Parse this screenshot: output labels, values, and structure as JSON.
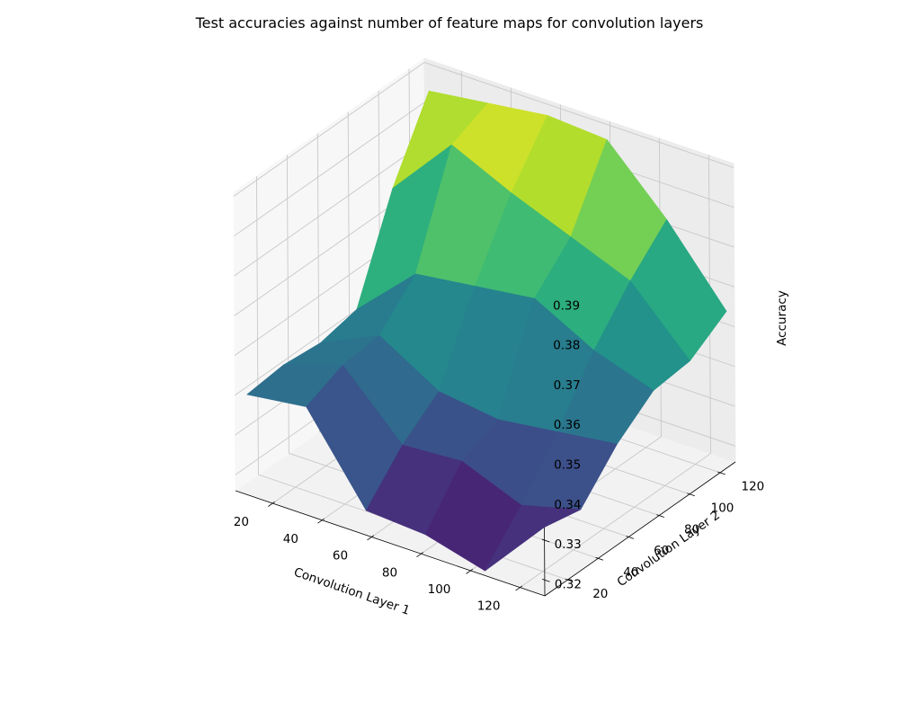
{
  "chart_data": {
    "type": "surface3d",
    "title": "Test accuracies against number of feature maps for convolution layers",
    "xlabel": "Convolution Layer 1",
    "ylabel": "Convolution Layer 2",
    "zlabel": "Accuracy",
    "xticks": [
      "20",
      "40",
      "60",
      "80",
      "100",
      "120"
    ],
    "yticks": [
      "20",
      "40",
      "60",
      "80",
      "100",
      "120"
    ],
    "zticks": [
      "0.32",
      "0.33",
      "0.34",
      "0.35",
      "0.36",
      "0.37",
      "0.38",
      "0.39"
    ],
    "xlim": [
      5,
      130
    ],
    "ylim": [
      5,
      130
    ],
    "zlim": [
      0.316,
      0.391
    ],
    "grid": true,
    "colormap": "viridis",
    "x": [
      8,
      32,
      56,
      80,
      104,
      128
    ],
    "y": [
      8,
      32,
      56,
      80,
      104,
      128
    ],
    "z": [
      [
        0.34,
        0.341,
        0.34,
        0.342,
        0.366,
        0.384
      ],
      [
        0.342,
        0.346,
        0.347,
        0.356,
        0.382,
        0.386
      ],
      [
        0.321,
        0.331,
        0.338,
        0.358,
        0.375,
        0.388
      ],
      [
        0.32,
        0.332,
        0.336,
        0.36,
        0.369,
        0.387
      ],
      [
        0.316,
        0.326,
        0.338,
        0.352,
        0.363,
        0.372
      ],
      [
        0.332,
        0.33,
        0.34,
        0.347,
        0.348,
        0.354
      ]
    ]
  }
}
